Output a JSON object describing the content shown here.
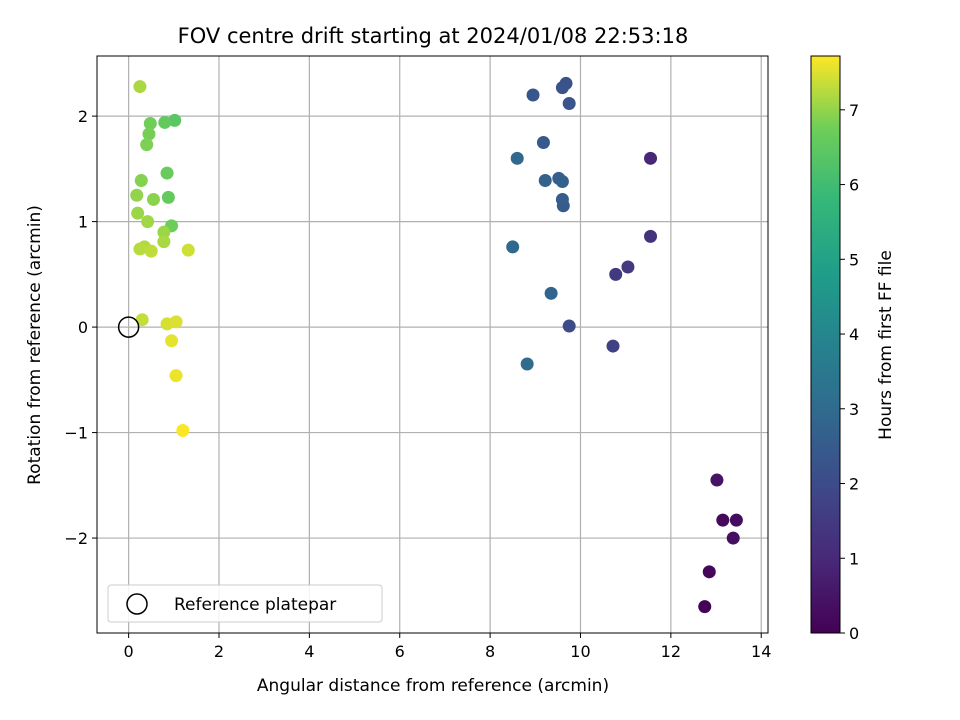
{
  "chart_data": {
    "type": "scatter",
    "title": "FOV centre drift starting at 2024/01/08 22:53:18",
    "xlabel": "Angular distance from reference (arcmin)",
    "ylabel": "Rotation from reference (arcmin)",
    "xlim": [
      -0.7,
      14.15
    ],
    "ylim": [
      -2.9,
      2.57
    ],
    "xticks": [
      0,
      2,
      4,
      6,
      8,
      10,
      12,
      14
    ],
    "yticks": [
      -2,
      -1,
      0,
      1,
      2
    ],
    "grid": true,
    "colormap": "viridis",
    "colorbar": {
      "label": "Hours from first FF file",
      "range": [
        0,
        7.72
      ],
      "ticks": [
        0,
        1,
        2,
        3,
        4,
        5,
        6,
        7
      ]
    },
    "legend": {
      "placement": "lower-left",
      "entries": [
        "Reference platepar"
      ]
    },
    "reference": {
      "x": 0,
      "y": 0
    },
    "points": [
      {
        "x": 12.75,
        "y": -2.65,
        "c": 0.05
      },
      {
        "x": 12.85,
        "y": -2.32,
        "c": 0.15
      },
      {
        "x": 13.15,
        "y": -1.83,
        "c": 0.2
      },
      {
        "x": 13.45,
        "y": -1.83,
        "c": 0.3
      },
      {
        "x": 13.38,
        "y": -2.0,
        "c": 0.35
      },
      {
        "x": 13.02,
        "y": -1.45,
        "c": 0.45
      },
      {
        "x": 11.55,
        "y": 1.6,
        "c": 0.95
      },
      {
        "x": 11.55,
        "y": 0.86,
        "c": 1.25
      },
      {
        "x": 11.05,
        "y": 0.57,
        "c": 1.45
      },
      {
        "x": 10.78,
        "y": 0.5,
        "c": 1.5
      },
      {
        "x": 10.72,
        "y": -0.18,
        "c": 1.7
      },
      {
        "x": 9.75,
        "y": 0.01,
        "c": 2.0
      },
      {
        "x": 9.68,
        "y": 2.31,
        "c": 2.2
      },
      {
        "x": 9.6,
        "y": 2.27,
        "c": 2.25
      },
      {
        "x": 9.75,
        "y": 2.12,
        "c": 2.3
      },
      {
        "x": 8.95,
        "y": 2.2,
        "c": 2.35
      },
      {
        "x": 9.18,
        "y": 1.75,
        "c": 2.45
      },
      {
        "x": 9.62,
        "y": 1.15,
        "c": 2.5
      },
      {
        "x": 9.6,
        "y": 1.21,
        "c": 2.55
      },
      {
        "x": 9.52,
        "y": 1.41,
        "c": 2.6
      },
      {
        "x": 9.6,
        "y": 1.38,
        "c": 2.65
      },
      {
        "x": 9.22,
        "y": 1.39,
        "c": 2.7
      },
      {
        "x": 9.35,
        "y": 0.32,
        "c": 2.8
      },
      {
        "x": 8.6,
        "y": 1.6,
        "c": 2.9
      },
      {
        "x": 8.5,
        "y": 0.76,
        "c": 2.95
      },
      {
        "x": 8.82,
        "y": -0.35,
        "c": 3.05
      },
      {
        "x": 1.02,
        "y": 1.96,
        "c": 6.45
      },
      {
        "x": 0.8,
        "y": 1.94,
        "c": 6.55
      },
      {
        "x": 0.88,
        "y": 1.23,
        "c": 6.6
      },
      {
        "x": 0.85,
        "y": 1.46,
        "c": 6.65
      },
      {
        "x": 0.95,
        "y": 0.96,
        "c": 6.7
      },
      {
        "x": 0.48,
        "y": 1.93,
        "c": 6.75
      },
      {
        "x": 0.45,
        "y": 1.83,
        "c": 6.8
      },
      {
        "x": 0.4,
        "y": 1.73,
        "c": 6.85
      },
      {
        "x": 0.28,
        "y": 1.39,
        "c": 6.9
      },
      {
        "x": 0.55,
        "y": 1.21,
        "c": 6.95
      },
      {
        "x": 0.18,
        "y": 1.25,
        "c": 7.0
      },
      {
        "x": 0.2,
        "y": 1.08,
        "c": 7.05
      },
      {
        "x": 0.78,
        "y": 0.9,
        "c": 7.05
      },
      {
        "x": 0.42,
        "y": 1.0,
        "c": 7.1
      },
      {
        "x": 0.78,
        "y": 0.81,
        "c": 7.15
      },
      {
        "x": 0.25,
        "y": 2.28,
        "c": 7.15
      },
      {
        "x": 0.35,
        "y": 0.76,
        "c": 7.2
      },
      {
        "x": 0.25,
        "y": 0.74,
        "c": 7.25
      },
      {
        "x": 0.5,
        "y": 0.72,
        "c": 7.3
      },
      {
        "x": 0.3,
        "y": 0.07,
        "c": 7.35
      },
      {
        "x": 1.32,
        "y": 0.73,
        "c": 7.4
      },
      {
        "x": 0.85,
        "y": 0.03,
        "c": 7.45
      },
      {
        "x": 1.05,
        "y": 0.05,
        "c": 7.5
      },
      {
        "x": 0.95,
        "y": -0.13,
        "c": 7.55
      },
      {
        "x": 1.05,
        "y": -0.46,
        "c": 7.6
      },
      {
        "x": 1.2,
        "y": -0.98,
        "c": 7.7
      }
    ]
  }
}
